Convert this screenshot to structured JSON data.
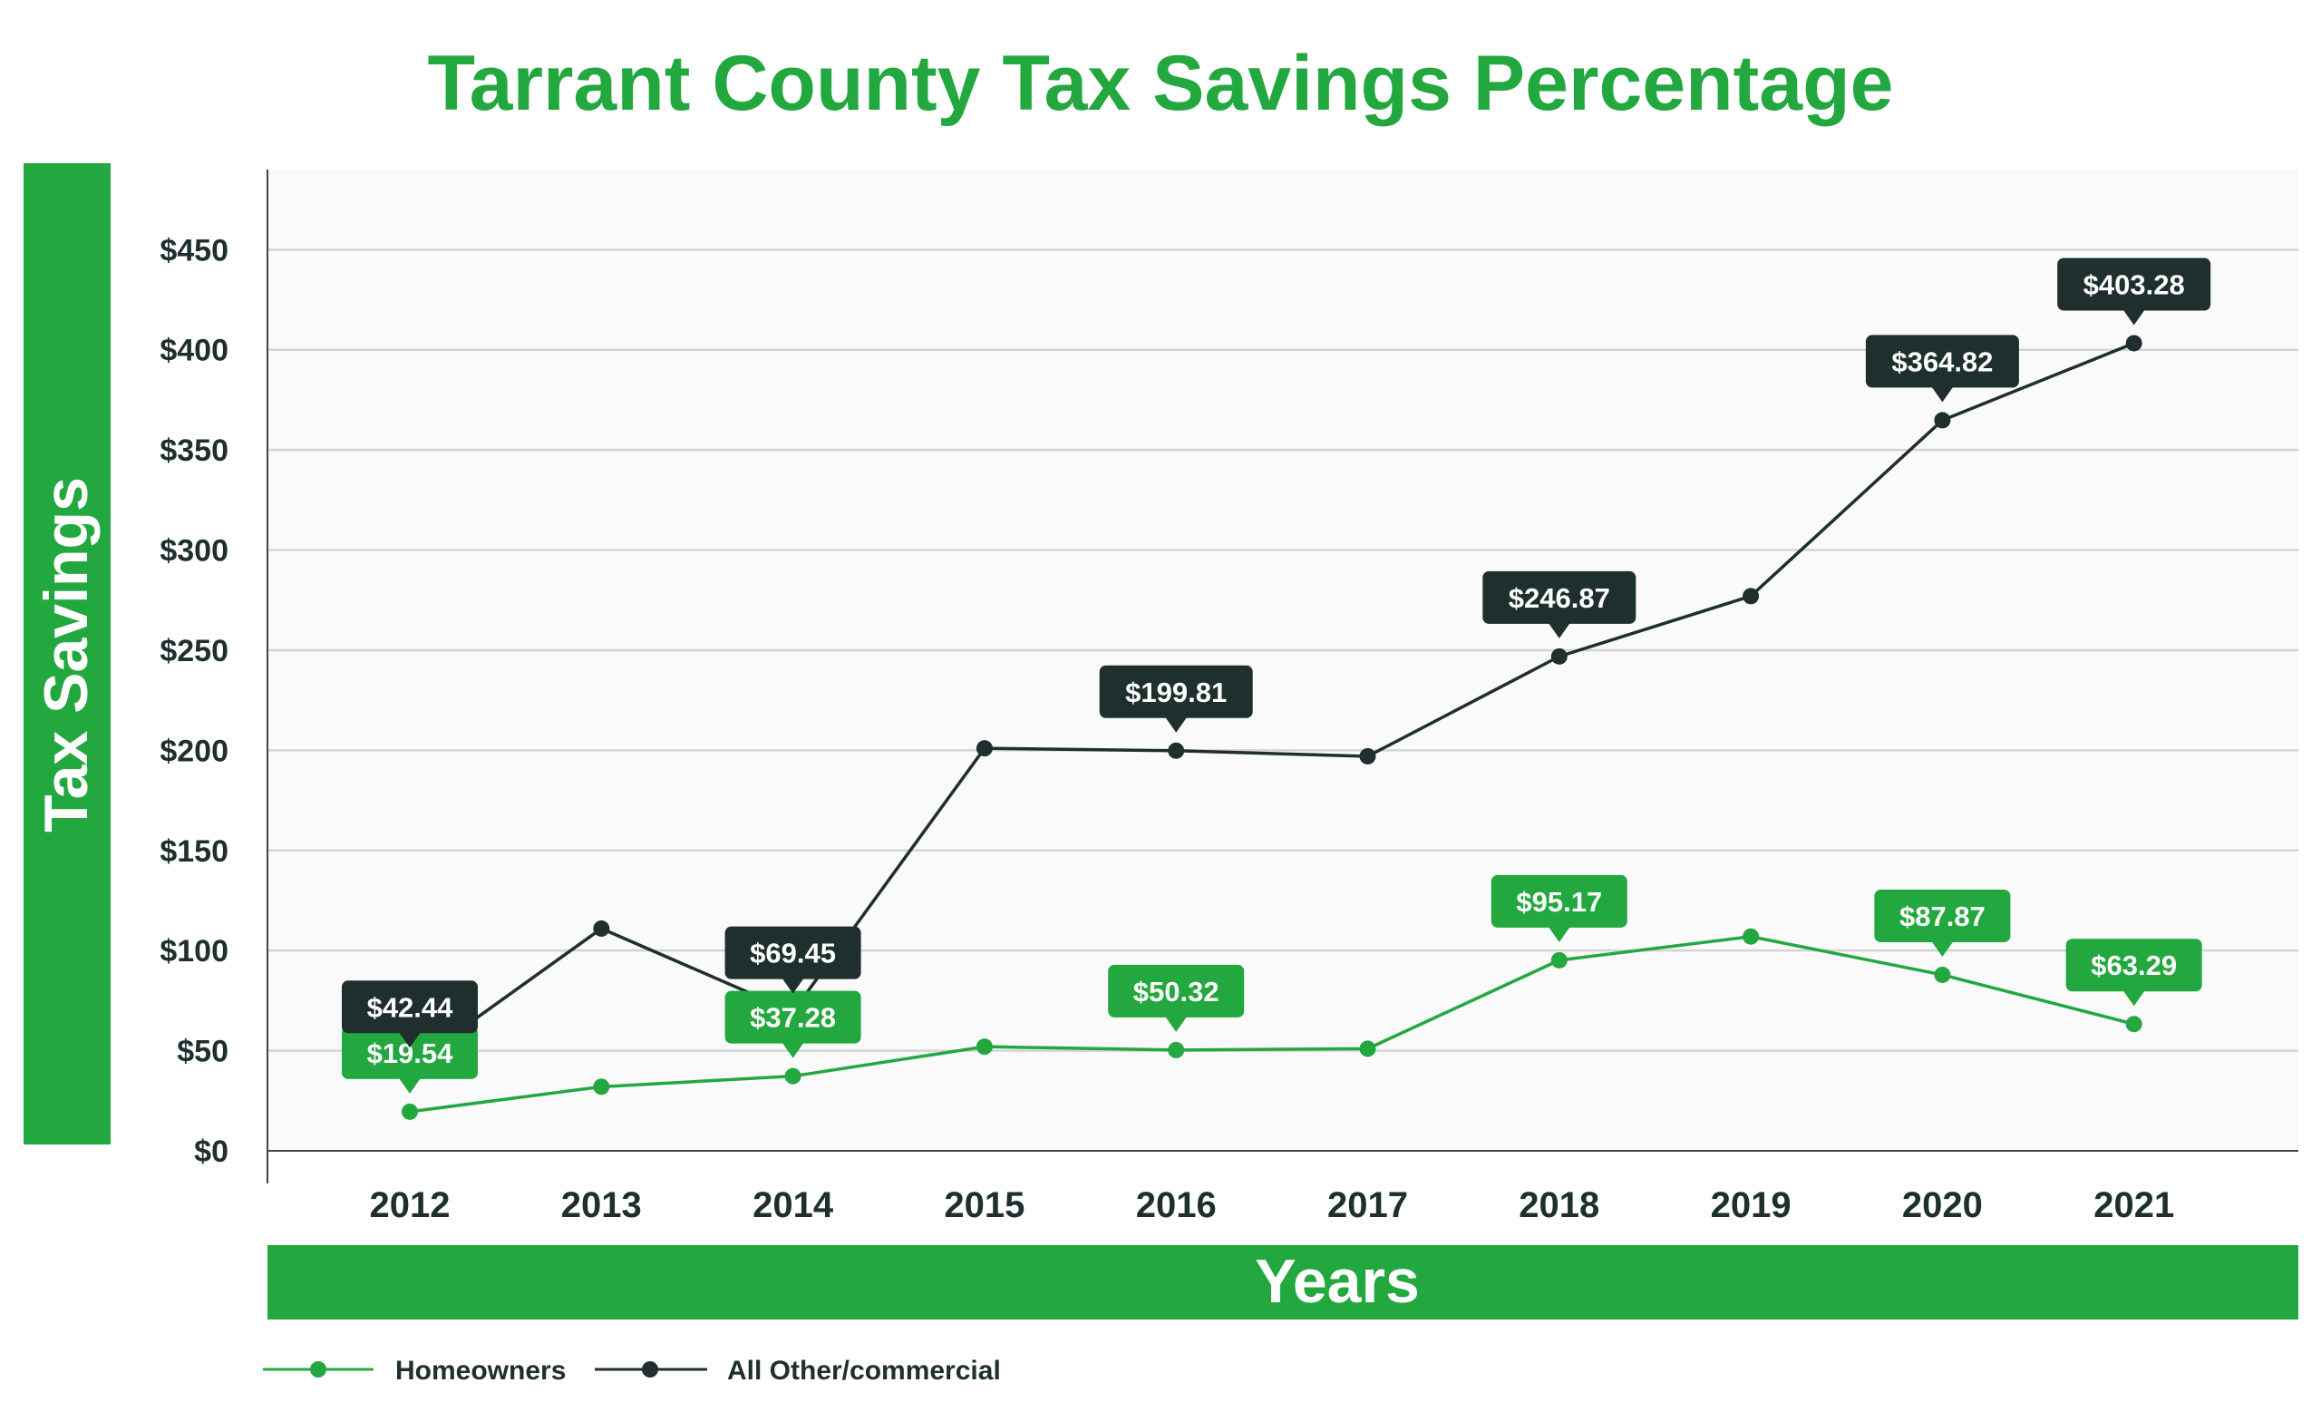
{
  "chart_data": {
    "type": "line",
    "title": "Tarrant County Tax Savings Percentage",
    "xlabel": "Years",
    "ylabel": "Tax Savings",
    "categories": [
      "2012",
      "2013",
      "2014",
      "2015",
      "2016",
      "2017",
      "2018",
      "2019",
      "2020",
      "2021"
    ],
    "ylim": [
      0,
      490
    ],
    "yticks": [
      0,
      50,
      100,
      150,
      200,
      250,
      300,
      350,
      400,
      450
    ],
    "ytick_labels": [
      "$0",
      "$50",
      "$100",
      "$150",
      "$200",
      "$250",
      "$300",
      "$350",
      "$400",
      "$450"
    ],
    "grid": true,
    "legend_position": "bottom-left",
    "series": [
      {
        "name": "Homeowners",
        "color": "#22a83f",
        "values": [
          19.54,
          32,
          37.28,
          52,
          50.32,
          51,
          95.17,
          107,
          87.87,
          63.29
        ],
        "labels": [
          "$19.54",
          null,
          "$37.28",
          null,
          "$50.32",
          null,
          "$95.17",
          null,
          "$87.87",
          "$63.29"
        ]
      },
      {
        "name": "All Other/commercial",
        "color": "#1e2f2d",
        "values": [
          42.44,
          111,
          69.45,
          201,
          199.81,
          197,
          246.87,
          277,
          364.82,
          403.28
        ],
        "labels": [
          "$42.44",
          null,
          "$69.45",
          null,
          "$199.81",
          null,
          "$246.87",
          null,
          "$364.82",
          "$403.28"
        ]
      }
    ]
  },
  "colors": {
    "accent": "#22a83f",
    "dark": "#1e2f2d",
    "plot_bg": "#fafafa"
  }
}
